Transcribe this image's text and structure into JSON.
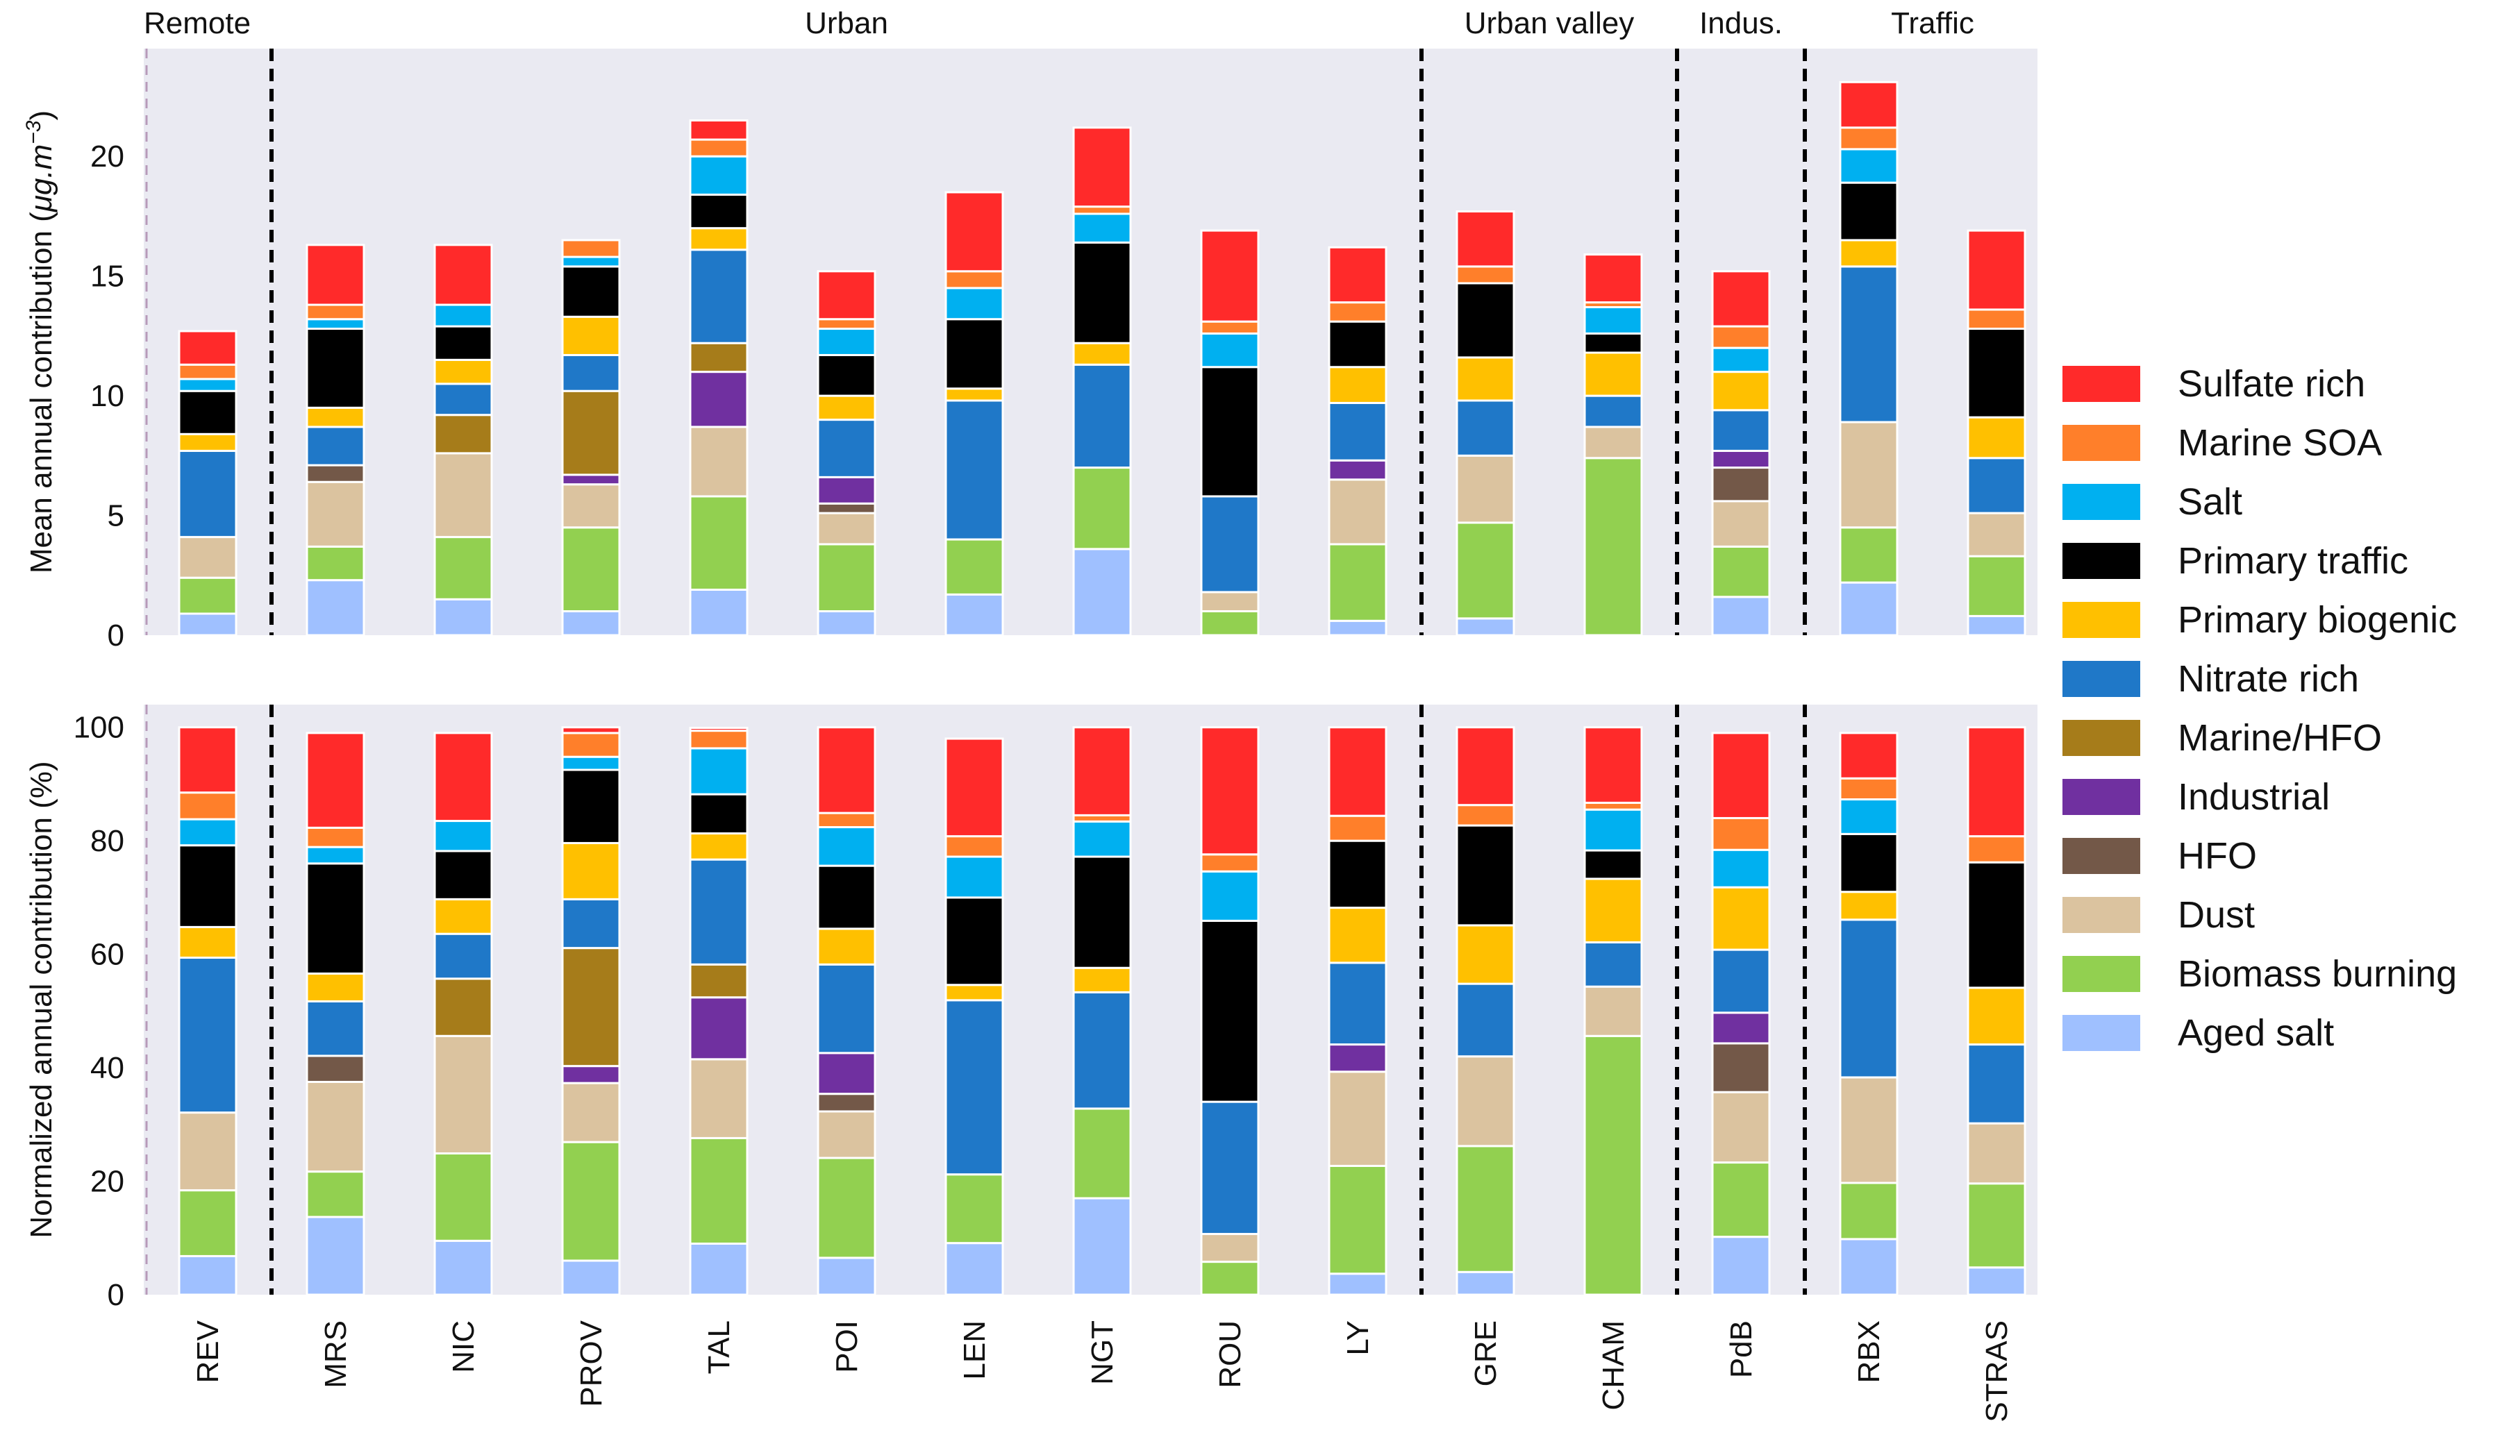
{
  "chart_data": [
    {
      "type": "bar",
      "stacked": true,
      "title": "",
      "ylabel": "Mean annual contribution (μg.m⁻³)",
      "ylabel_parts": {
        "prefix": "Mean annual contribution (",
        "unit": "μg.m",
        "exponent": "−3",
        "suffix": ")"
      },
      "ylim": [
        0,
        24.5
      ],
      "yticks": [
        0,
        5,
        10,
        15,
        20
      ],
      "categories": [
        "REV",
        "MRS",
        "NIC",
        "PROV",
        "TAL",
        "POI",
        "LEN",
        "NGT",
        "ROU",
        "LY",
        "GRE",
        "CHAM",
        "PdB",
        "RBX",
        "STRAS"
      ],
      "series": [
        {
          "name": "Aged salt",
          "values": [
            0.9,
            2.3,
            1.5,
            1.0,
            1.9,
            1.0,
            1.7,
            3.6,
            0.0,
            0.6,
            0.7,
            0.0,
            1.6,
            2.2,
            0.8
          ]
        },
        {
          "name": "Biomass burning",
          "values": [
            1.5,
            1.4,
            2.6,
            3.5,
            3.9,
            2.8,
            2.3,
            3.4,
            1.0,
            3.2,
            4.0,
            7.4,
            2.1,
            2.3,
            2.5
          ]
        },
        {
          "name": "Dust",
          "values": [
            1.7,
            2.7,
            3.5,
            1.8,
            2.9,
            1.3,
            0.0,
            0.0,
            0.8,
            2.7,
            2.8,
            1.3,
            1.9,
            4.4,
            1.8
          ]
        },
        {
          "name": "HFO",
          "values": [
            0.0,
            0.7,
            0.0,
            0.0,
            0.0,
            0.4,
            0.0,
            0.0,
            0.0,
            0.0,
            0.0,
            0.0,
            1.4,
            0.0,
            0.0
          ]
        },
        {
          "name": "Industrial",
          "values": [
            0.0,
            0.0,
            0.0,
            0.4,
            2.3,
            1.1,
            0.0,
            0.0,
            0.0,
            0.8,
            0.0,
            0.0,
            0.7,
            0.0,
            0.0
          ]
        },
        {
          "name": "Marine/HFO",
          "values": [
            0.0,
            0.0,
            1.6,
            3.5,
            1.2,
            0.0,
            0.0,
            0.0,
            0.0,
            0.0,
            0.0,
            0.0,
            0.0,
            0.0,
            0.0
          ]
        },
        {
          "name": "Nitrate rich",
          "values": [
            3.6,
            1.6,
            1.3,
            1.5,
            3.9,
            2.4,
            5.8,
            4.3,
            4.0,
            2.4,
            2.3,
            1.3,
            1.7,
            6.5,
            2.3
          ]
        },
        {
          "name": "Primary biogenic",
          "values": [
            0.7,
            0.8,
            1.0,
            1.6,
            0.9,
            1.0,
            0.5,
            0.9,
            0.0,
            1.5,
            1.8,
            1.8,
            1.6,
            1.1,
            1.7
          ]
        },
        {
          "name": "Primary traffic",
          "values": [
            1.8,
            3.3,
            1.4,
            2.1,
            1.4,
            1.7,
            2.9,
            4.2,
            5.4,
            1.9,
            3.1,
            0.8,
            0.0,
            2.4,
            3.7
          ]
        },
        {
          "name": "Salt",
          "values": [
            0.5,
            0.4,
            0.9,
            0.4,
            1.6,
            1.1,
            1.3,
            1.2,
            1.4,
            0.0,
            0.0,
            1.1,
            1.0,
            1.4,
            0.0
          ]
        },
        {
          "name": "Marine SOA",
          "values": [
            0.6,
            0.6,
            0.0,
            0.7,
            0.7,
            0.4,
            0.7,
            0.3,
            0.5,
            0.8,
            0.7,
            0.2,
            0.9,
            0.9,
            0.8
          ]
        },
        {
          "name": "Sulfate rich",
          "values": [
            1.4,
            2.5,
            2.5,
            0.0,
            0.8,
            2.0,
            3.3,
            3.3,
            3.8,
            2.3,
            2.3,
            2.0,
            2.3,
            1.9,
            3.3
          ]
        }
      ]
    },
    {
      "type": "bar",
      "stacked": true,
      "title": "",
      "ylabel": "Normalized annual contribution (%)",
      "ylim": [
        0,
        104
      ],
      "yticks": [
        0,
        20,
        40,
        60,
        80,
        100
      ],
      "xlabel": "",
      "categories": [
        "REV",
        "MRS",
        "NIC",
        "PROV",
        "TAL",
        "POI",
        "LEN",
        "NGT",
        "ROU",
        "LY",
        "GRE",
        "CHAM",
        "PdB",
        "RBX",
        "STRAS"
      ],
      "series": [
        {
          "name": "Aged salt",
          "values": [
            6.8,
            13.7,
            9.5,
            6.0,
            9.0,
            6.5,
            9.1,
            17.0,
            0.0,
            3.7,
            4.0,
            0.0,
            10.2,
            9.8,
            4.8
          ]
        },
        {
          "name": "Biomass burning",
          "values": [
            11.6,
            8.0,
            15.4,
            20.9,
            18.6,
            17.6,
            12.1,
            15.8,
            5.8,
            19.0,
            22.2,
            45.6,
            13.1,
            9.9,
            14.8
          ]
        },
        {
          "name": "Dust",
          "values": [
            13.7,
            15.8,
            20.7,
            10.4,
            13.9,
            8.2,
            0.0,
            0.0,
            4.9,
            16.6,
            15.8,
            8.7,
            12.4,
            18.6,
            10.6
          ]
        },
        {
          "name": "HFO",
          "values": [
            0.0,
            4.6,
            0.0,
            0.0,
            0.0,
            3.1,
            0.0,
            0.0,
            0.0,
            0.0,
            0.0,
            0.0,
            8.6,
            0.0,
            0.0
          ]
        },
        {
          "name": "Industrial",
          "values": [
            0.0,
            0.0,
            0.0,
            3.0,
            10.9,
            7.2,
            0.0,
            0.0,
            0.0,
            4.8,
            0.0,
            0.0,
            5.4,
            0.0,
            0.0
          ]
        },
        {
          "name": "Marine/HFO",
          "values": [
            0.0,
            0.0,
            10.1,
            20.8,
            5.8,
            0.0,
            0.0,
            0.0,
            0.0,
            0.0,
            0.0,
            0.0,
            0.0,
            0.0,
            0.0
          ]
        },
        {
          "name": "Nitrate rich",
          "values": [
            27.3,
            9.6,
            7.9,
            8.6,
            18.5,
            15.6,
            30.7,
            20.5,
            23.3,
            14.4,
            12.8,
            7.8,
            11.1,
            27.8,
            13.9
          ]
        },
        {
          "name": "Primary biogenic",
          "values": [
            5.4,
            4.9,
            6.1,
            9.9,
            4.6,
            6.3,
            2.7,
            4.3,
            0.0,
            9.7,
            10.3,
            11.2,
            11.0,
            4.9,
            10.0
          ]
        },
        {
          "name": "Primary traffic",
          "values": [
            14.4,
            19.4,
            8.5,
            12.9,
            6.9,
            11.1,
            15.4,
            19.6,
            31.9,
            11.8,
            17.6,
            5.0,
            0.0,
            10.2,
            22.1
          ]
        },
        {
          "name": "Salt",
          "values": [
            4.6,
            2.9,
            5.3,
            2.3,
            8.1,
            6.8,
            7.2,
            6.2,
            8.7,
            0.0,
            0.0,
            7.2,
            6.6,
            6.1,
            0.0
          ]
        },
        {
          "name": "Marine SOA",
          "values": [
            4.7,
            3.4,
            0.0,
            4.2,
            3.1,
            2.5,
            3.6,
            1.1,
            3.0,
            4.4,
            3.6,
            1.2,
            5.6,
            3.7,
            4.6
          ]
        },
        {
          "name": "Sulfate rich",
          "values": [
            11.5,
            16.7,
            15.5,
            1.0,
            0.5,
            15.1,
            17.2,
            15.5,
            22.4,
            15.6,
            13.7,
            13.3,
            15.0,
            8.0,
            19.2
          ]
        }
      ]
    }
  ],
  "groups": [
    {
      "label": "Remote",
      "count": 1
    },
    {
      "label": "Urban",
      "count": 9
    },
    {
      "label": "Urban valley",
      "count": 2
    },
    {
      "label": "Indus.",
      "count": 1
    },
    {
      "label": "Traffic",
      "count": 2
    }
  ],
  "colors": {
    "Sulfate rich": "#ff2a2a",
    "Marine SOA": "#ff7f2a",
    "Salt": "#00b0f0",
    "Primary traffic": "#000000",
    "Primary biogenic": "#ffc000",
    "Nitrate rich": "#1f78c8",
    "Marine/HFO": "#a67c1a",
    "Industrial": "#7030a0",
    "HFO": "#735848",
    "Dust": "#dbc39f",
    "Biomass burning": "#92d050",
    "Aged salt": "#9fc0ff"
  },
  "legend": {
    "position": "right",
    "items": [
      "Sulfate rich",
      "Marine SOA",
      "Salt",
      "Primary traffic",
      "Primary biogenic",
      "Nitrate rich",
      "Marine/HFO",
      "Industrial",
      "HFO",
      "Dust",
      "Biomass burning",
      "Aged salt"
    ]
  }
}
